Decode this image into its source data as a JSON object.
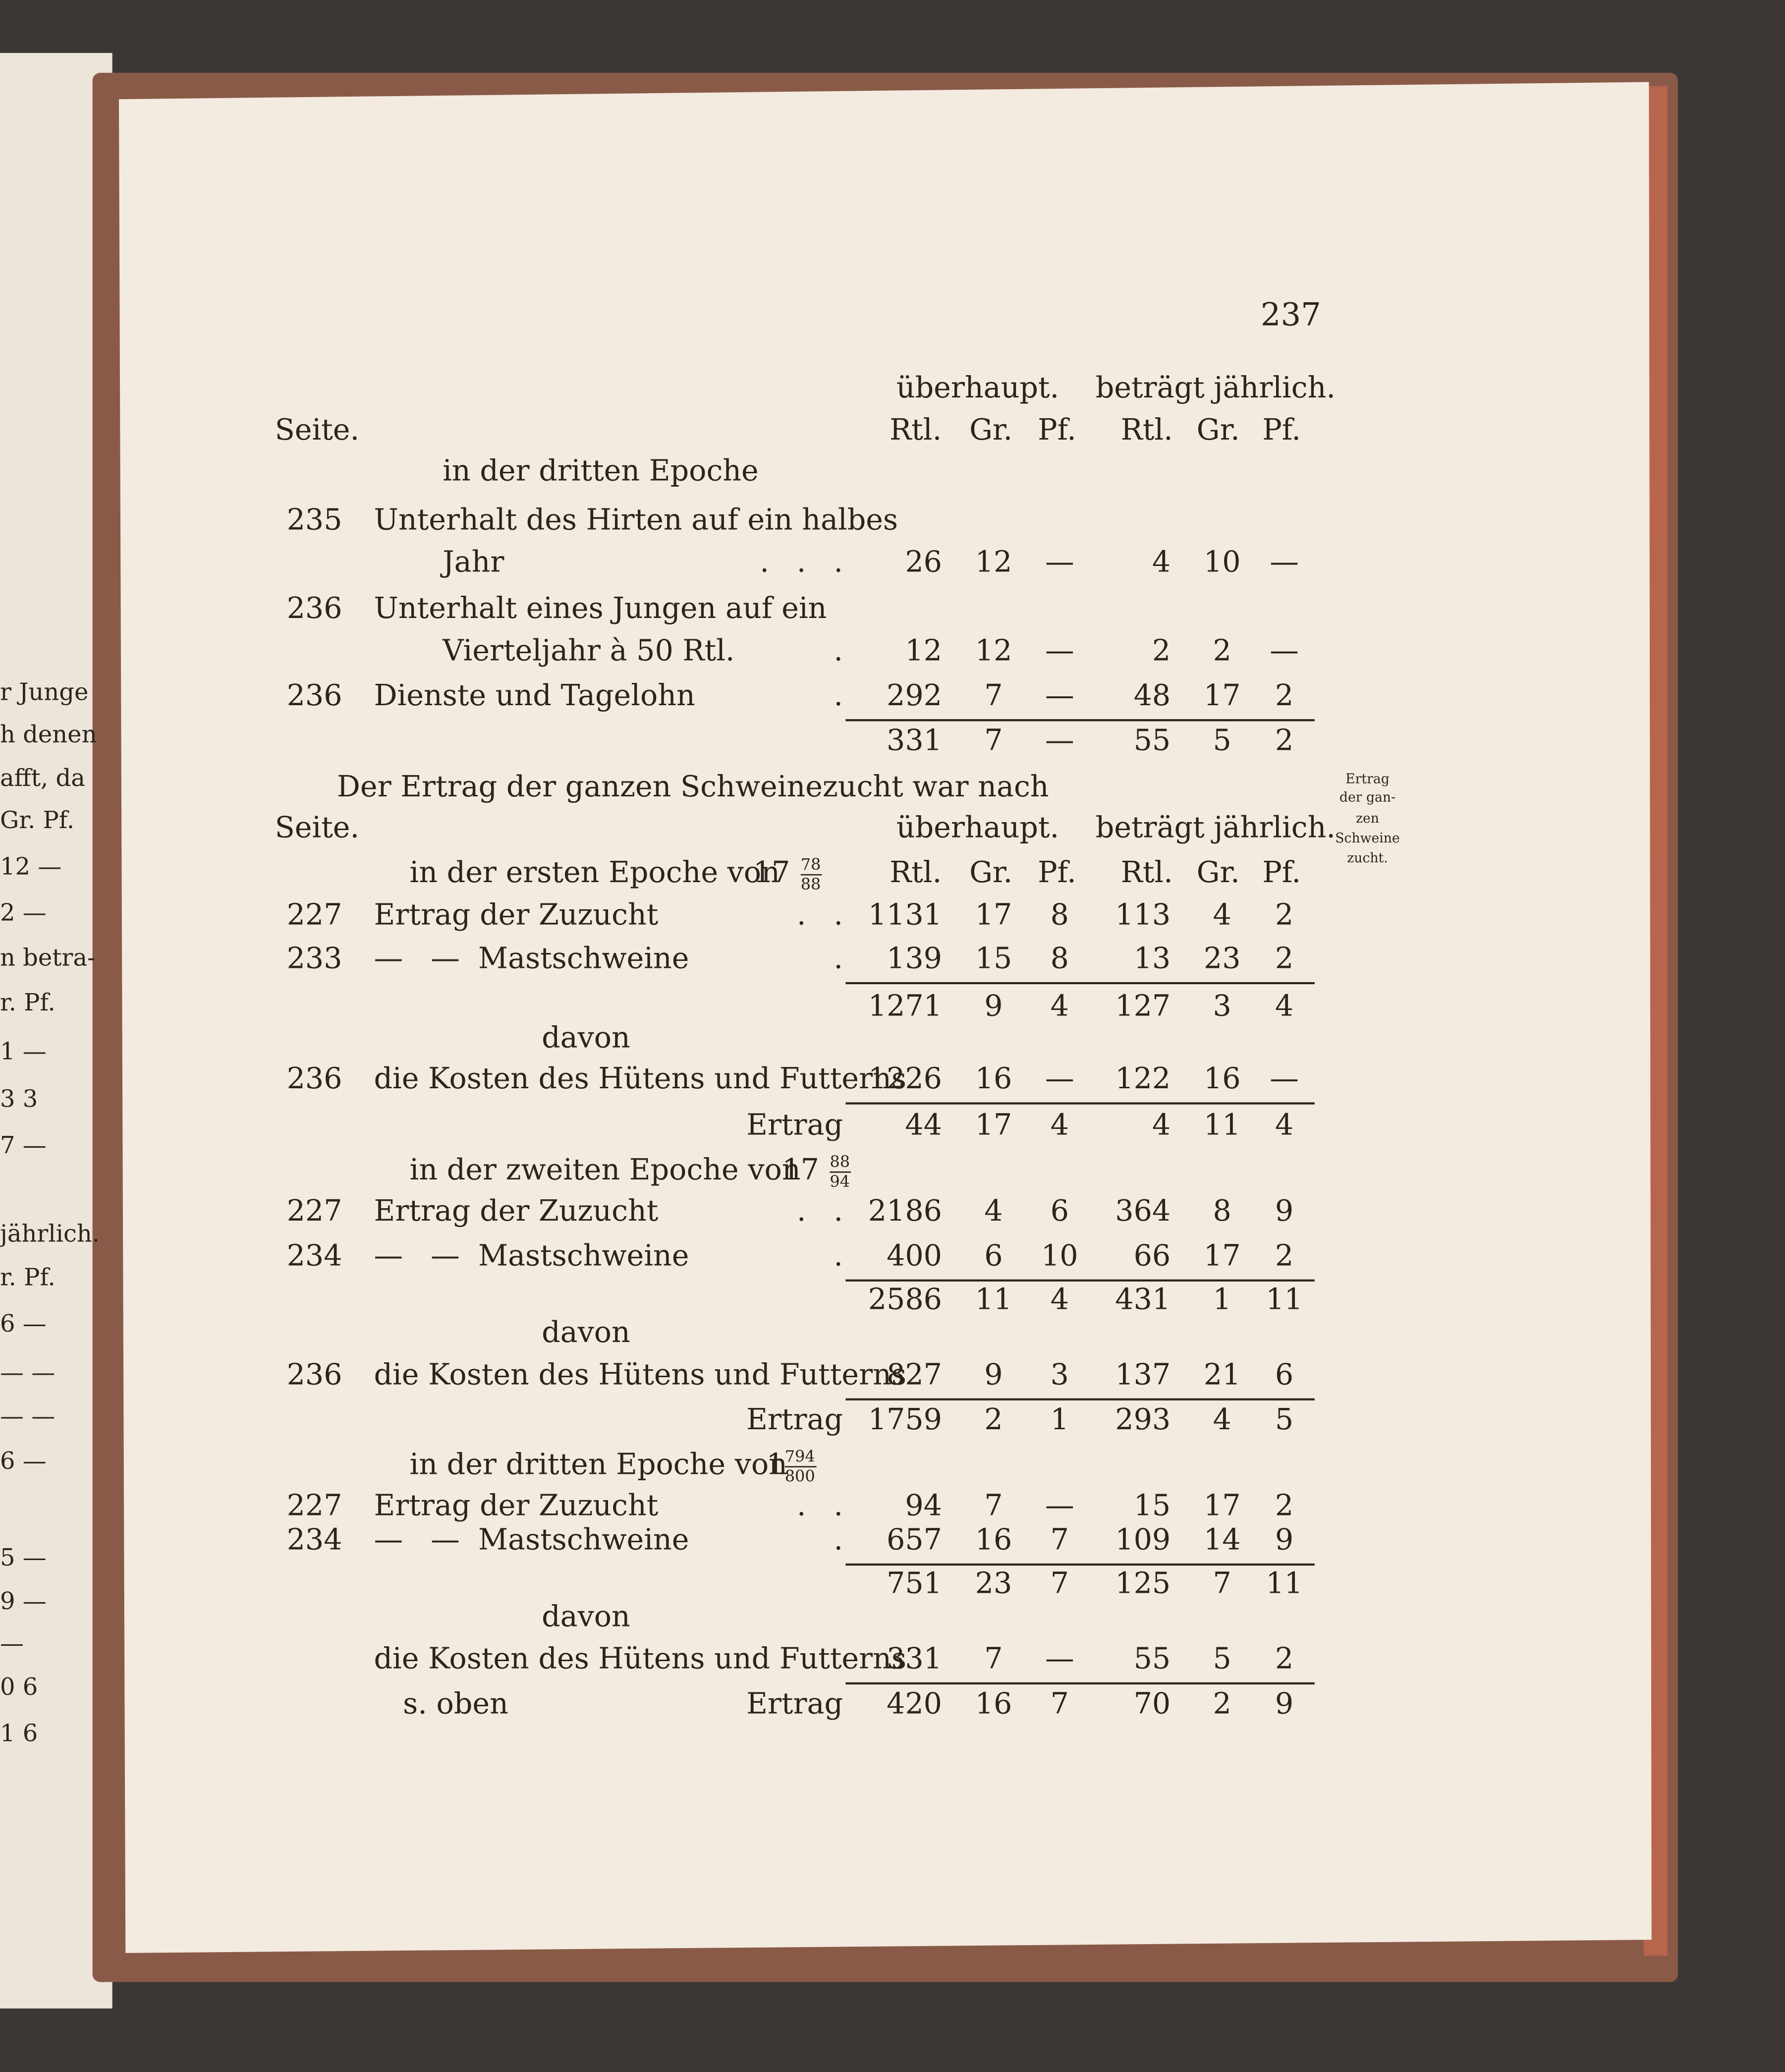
{
  "page_number": "237",
  "left_page_fragments": [
    "r Junge",
    "h denen",
    "afft, da",
    "Gr. Pf.",
    "12 —",
    "2 —",
    "n betra-",
    "r. Pf.",
    "1 —",
    "3  3",
    "7 —",
    "jährlich.",
    "r. Pf.",
    "6 —",
    "— —",
    "— —",
    "6 —",
    "5 —",
    "9 —",
    "—",
    "0  6",
    "1  6"
  ],
  "margin_note": [
    "Ertrag",
    "der gan-",
    "zen",
    "Schweine",
    "zucht."
  ],
  "lines": [
    {
      "overall": "überhaupt.",
      "annual": "beträgt jährlich."
    },
    {
      "seite": "Seite.",
      "units": [
        "Rtl.",
        "Gr.",
        "Pf.",
        "Rtl.",
        "Gr.",
        "Pf."
      ]
    },
    {
      "text": "in der dritten Epoche"
    },
    {
      "page": "235",
      "text": "Unterhalt des Hirten auf ein halbes"
    },
    {
      "text": "Jahr",
      "dots": ".   .   .",
      "values": [
        26,
        12,
        "—",
        4,
        10,
        "—"
      ]
    },
    {
      "page": "236",
      "text": "Unterhalt eines Jungen auf ein"
    },
    {
      "text": "Vierteljahr à 50 Rtl.",
      "dots": ".",
      "values": [
        12,
        12,
        "—",
        2,
        2,
        "—"
      ]
    },
    {
      "page": "236",
      "text": "Dienste und Tagelohn",
      "dots": ".",
      "values": [
        292,
        7,
        "—",
        48,
        17,
        2
      ]
    },
    {
      "values": [
        331,
        7,
        "—",
        55,
        5,
        2
      ]
    },
    {
      "text": "Der Ertrag der ganzen Schweinezucht war nach"
    },
    {
      "seite": "Seite.",
      "overall": "überhaupt.",
      "annual": "beträgt jährlich."
    },
    {
      "text": "in der ersten Epoche von",
      "fraction": {
        "whole": "17",
        "numerator": "78",
        "denominator": "88"
      },
      "units": [
        "Rtl.",
        "Gr.",
        "Pf.",
        "Rtl.",
        "Gr.",
        "Pf."
      ]
    },
    {
      "page": "227",
      "text": "Ertrag der Zuzucht",
      "dots": ".   .",
      "values": [
        1131,
        17,
        8,
        113,
        4,
        2
      ]
    },
    {
      "page": "233",
      "text": "—   —  Mastschweine",
      "dots": ".",
      "values": [
        139,
        15,
        8,
        13,
        23,
        2
      ]
    },
    {
      "values": [
        1271,
        9,
        4,
        127,
        3,
        4
      ]
    },
    {
      "text": "davon"
    },
    {
      "page": "236",
      "text": "die Kosten des Hütens und Futterns",
      "values": [
        1226,
        16,
        "—",
        122,
        16,
        "—"
      ]
    },
    {
      "label": "Ertrag",
      "values": [
        44,
        17,
        4,
        4,
        11,
        4
      ]
    },
    {
      "text": "in der zweiten Epoche von",
      "fraction": {
        "whole": "17",
        "numerator": "88",
        "denominator": "94"
      }
    },
    {
      "page": "227",
      "text": "Ertrag der Zuzucht",
      "dots": ".   .",
      "values": [
        2186,
        4,
        6,
        364,
        8,
        9
      ]
    },
    {
      "page": "234",
      "text": "—   —  Mastschweine",
      "dots": ".",
      "values": [
        400,
        6,
        10,
        66,
        17,
        2
      ]
    },
    {
      "values": [
        2586,
        11,
        4,
        431,
        1,
        11
      ]
    },
    {
      "text": "davon"
    },
    {
      "page": "236",
      "text": "die Kosten des Hütens und Futterns",
      "values": [
        827,
        9,
        3,
        137,
        21,
        6
      ]
    },
    {
      "label": "Ertrag",
      "values": [
        1759,
        2,
        1,
        293,
        4,
        5
      ]
    },
    {
      "text": "in der dritten Epoche von",
      "fraction": {
        "whole": "1",
        "numerator": "794",
        "denominator": "800"
      }
    },
    {
      "page": "227",
      "text": "Ertrag der Zuzucht",
      "dots": ".   .",
      "values": [
        94,
        7,
        "—",
        15,
        17,
        2
      ]
    },
    {
      "page": "234",
      "text": "—   —  Mastschweine",
      "dots": ".",
      "values": [
        657,
        16,
        7,
        109,
        14,
        9
      ]
    },
    {
      "values": [
        751,
        23,
        7,
        125,
        7,
        11
      ]
    },
    {
      "text": "davon"
    },
    {
      "text": "die Kosten des Hütens und Futterns",
      "values": [
        331,
        7,
        "—",
        55,
        5,
        2
      ]
    },
    {
      "text": "s. oben",
      "label": "Ertrag",
      "values": [
        420,
        16,
        7,
        70,
        2,
        9
      ]
    }
  ]
}
